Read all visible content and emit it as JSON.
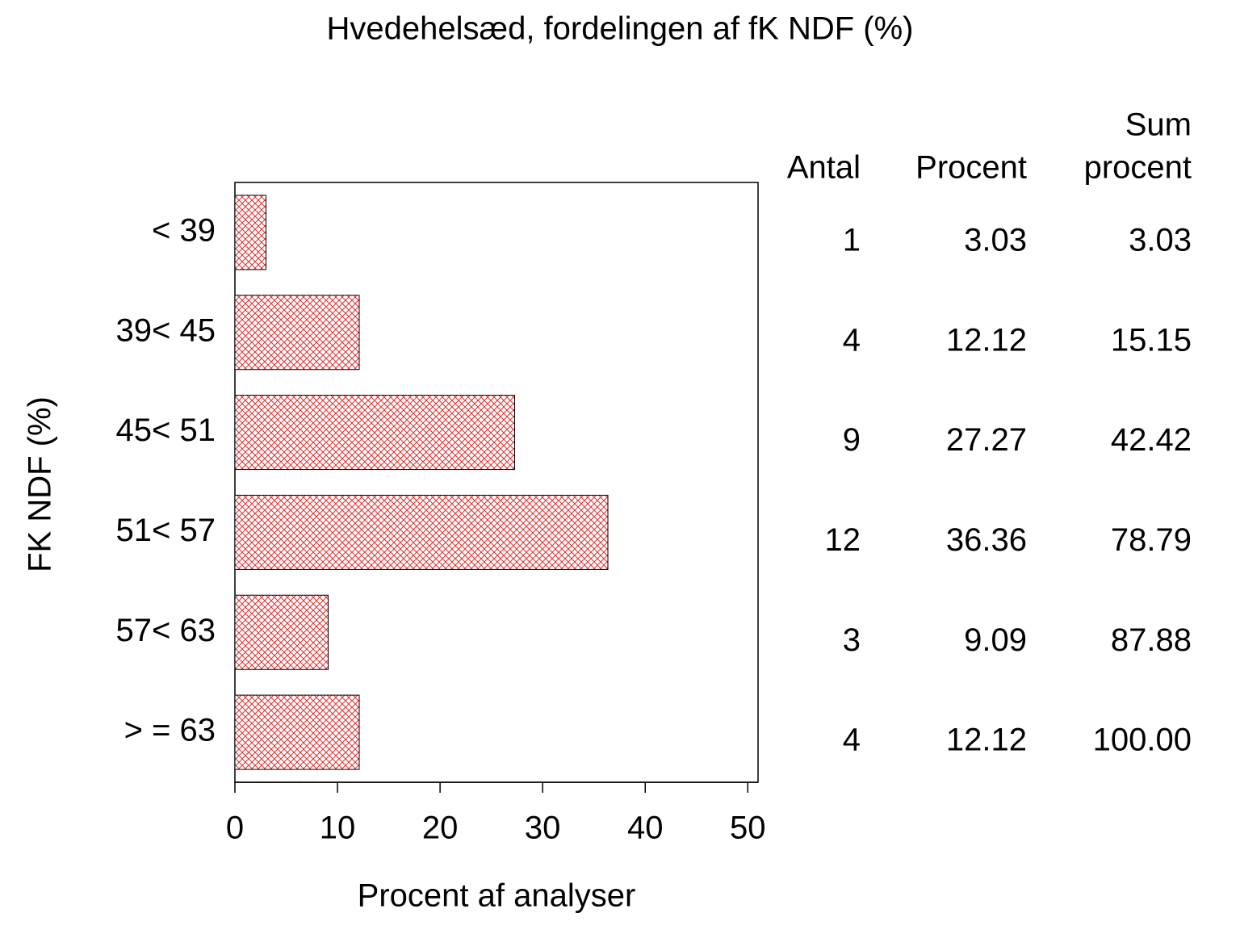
{
  "chart_data": {
    "type": "hbar",
    "title": "Hvedehelsæd, fordelingen af fK NDF (%)",
    "y_label": "FK NDF (%)",
    "x_label": "Procent af analyser",
    "categories": [
      "< 39",
      "39< 45",
      "45< 51",
      "51< 57",
      "57< 63",
      "> = 63"
    ],
    "values": [
      3.03,
      12.12,
      27.27,
      36.36,
      9.09,
      12.12
    ],
    "color": "#e03030",
    "xlim": [
      0,
      51
    ],
    "xticks": [
      0,
      10,
      20,
      30,
      40,
      50
    ],
    "table": {
      "antal": {
        "header": "Antal",
        "values": [
          1,
          4,
          9,
          12,
          3,
          4
        ]
      },
      "procent": {
        "header": "Procent"
      },
      "sum": {
        "header": [
          "Sum",
          "procent"
        ],
        "values": [
          3.03,
          15.15,
          42.42,
          78.79,
          87.88,
          100
        ],
        "value_labels": [
          "3.03",
          "15.15",
          "42.42",
          "78.79",
          "87.88",
          "100.00"
        ]
      }
    }
  }
}
